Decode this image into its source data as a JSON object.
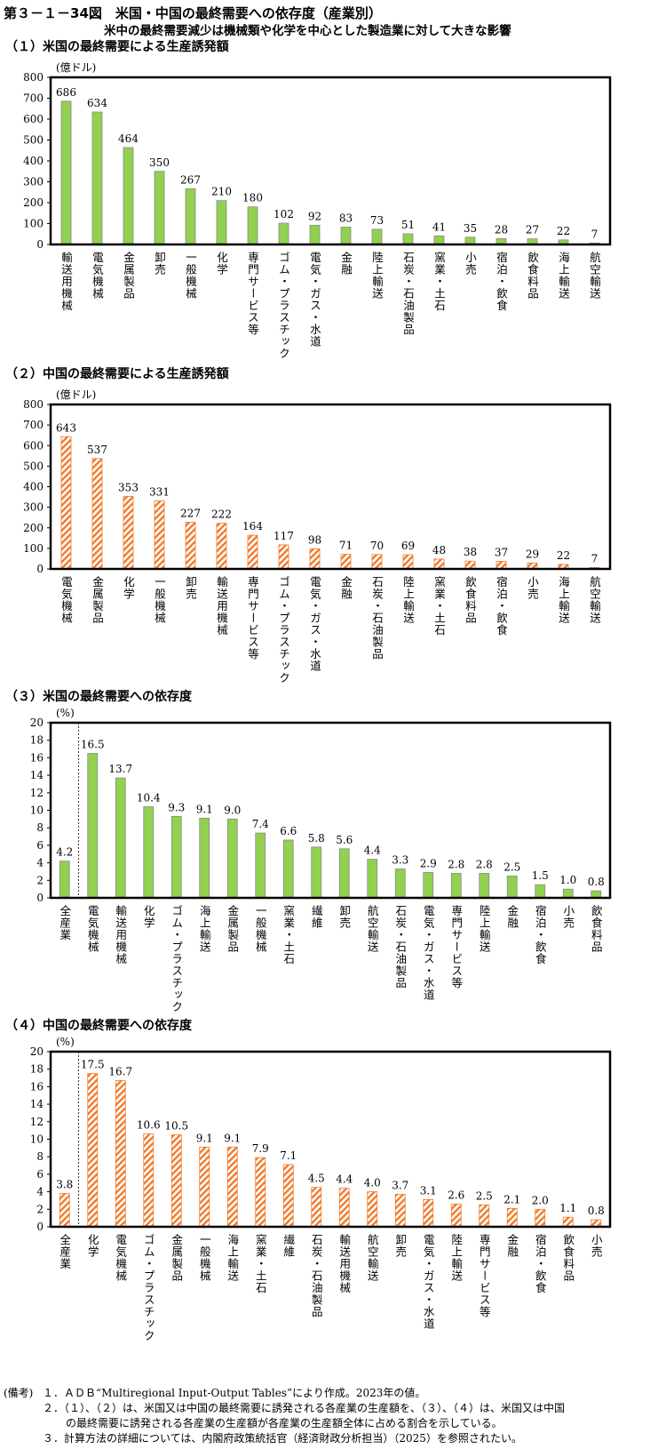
{
  "header": {
    "title": "第３－１－34図　米国・中国の最終需要への依存度（産業別）",
    "subtitle": "米中の最終需要減少は機械類や化学を中心とした製造業に対して大きな影響"
  },
  "colors": {
    "us": "#92D050",
    "cn": "#F07A2A",
    "axis": "#000000"
  },
  "chart_data": [
    {
      "type": "bar",
      "title": "（１）米国の最終需要による生産誘発額",
      "ylabel": "(億ドル)",
      "ylim": [
        0,
        800
      ],
      "yticks": [
        0,
        100,
        200,
        300,
        400,
        500,
        600,
        700,
        800
      ],
      "style": "solid-green",
      "categories": [
        "輸送用機械",
        "電気機械",
        "金属製品",
        "卸売",
        "一般機械",
        "化学",
        "専門サービス等",
        "ゴム・プラスチック",
        "電気・ガス・水道",
        "金融",
        "陸上輸送",
        "石炭・石油製品",
        "窯業・土石",
        "小売",
        "宿泊・飲食",
        "飲食料品",
        "海上輸送",
        "航空輸送"
      ],
      "values": [
        686,
        634,
        464,
        350,
        267,
        210,
        180,
        102,
        92,
        83,
        73,
        51,
        41,
        35,
        28,
        27,
        22,
        7
      ],
      "labels": [
        "686",
        "634",
        "464",
        "350",
        "267",
        "210",
        "180",
        "102",
        "92",
        "83",
        "73",
        "51",
        "41",
        "35",
        "28",
        "27",
        "22",
        "7"
      ]
    },
    {
      "type": "bar",
      "title": "（２）中国の最終需要による生産誘発額",
      "ylabel": "(億ドル)",
      "ylim": [
        0,
        800
      ],
      "yticks": [
        0,
        100,
        200,
        300,
        400,
        500,
        600,
        700,
        800
      ],
      "style": "hatched-orange",
      "categories": [
        "電気機械",
        "金属製品",
        "化学",
        "一般機械",
        "卸売",
        "輸送用機械",
        "専門サービス等",
        "ゴム・プラスチック",
        "電気・ガス・水道",
        "金融",
        "石炭・石油製品",
        "陸上輸送",
        "窯業・土石",
        "飲食料品",
        "宿泊・飲食",
        "小売",
        "海上輸送",
        "航空輸送"
      ],
      "values": [
        643,
        537,
        353,
        331,
        227,
        222,
        164,
        117,
        98,
        71,
        70,
        69,
        48,
        38,
        37,
        29,
        22,
        7
      ],
      "labels": [
        "643",
        "537",
        "353",
        "331",
        "227",
        "222",
        "164",
        "117",
        "98",
        "71",
        "70",
        "69",
        "48",
        "38",
        "37",
        "29",
        "22",
        "7"
      ]
    },
    {
      "type": "bar",
      "title": "（３）米国の最終需要への依存度",
      "ylabel": "(%)",
      "ylim": [
        0,
        20
      ],
      "yticks": [
        0,
        2,
        4,
        6,
        8,
        10,
        12,
        14,
        16,
        18,
        20
      ],
      "style": "solid-green",
      "separator_after_first": true,
      "categories": [
        "全産業",
        "電気機械",
        "輸送用機械",
        "化学",
        "ゴム・プラスチック",
        "海上輸送",
        "金属製品",
        "一般機械",
        "窯業・土石",
        "繊維",
        "卸売",
        "航空輸送",
        "石炭・石油製品",
        "電気・ガス・水道",
        "専門サービス等",
        "陸上輸送",
        "金融",
        "宿泊・飲食",
        "小売",
        "飲食料品"
      ],
      "values": [
        4.2,
        16.5,
        13.7,
        10.4,
        9.3,
        9.1,
        9.0,
        7.4,
        6.6,
        5.8,
        5.6,
        4.4,
        3.3,
        2.9,
        2.8,
        2.8,
        2.5,
        1.5,
        1.0,
        0.8
      ],
      "labels": [
        "4.2",
        "16.5",
        "13.7",
        "10.4",
        "9.3",
        "9.1",
        "9.0",
        "7.4",
        "6.6",
        "5.8",
        "5.6",
        "4.4",
        "3.3",
        "2.9",
        "2.8",
        "2.8",
        "2.5",
        "1.5",
        "1.0",
        "0.8"
      ]
    },
    {
      "type": "bar",
      "title": "（４）中国の最終需要への依存度",
      "ylabel": "(%)",
      "ylim": [
        0,
        20
      ],
      "yticks": [
        0,
        2,
        4,
        6,
        8,
        10,
        12,
        14,
        16,
        18,
        20
      ],
      "style": "hatched-orange",
      "separator_after_first": true,
      "categories": [
        "全産業",
        "化学",
        "電気機械",
        "ゴム・プラスチック",
        "金属製品",
        "一般機械",
        "海上輸送",
        "窯業・土石",
        "繊維",
        "石炭・石油製品",
        "輸送用機械",
        "航空輸送",
        "卸売",
        "電気・ガス・水道",
        "陸上輸送",
        "専門サービス等",
        "金融",
        "宿泊・飲食",
        "飲食料品",
        "小売"
      ],
      "values": [
        3.8,
        17.5,
        16.7,
        10.6,
        10.5,
        9.1,
        9.1,
        7.9,
        7.1,
        4.5,
        4.4,
        4.0,
        3.7,
        3.1,
        2.6,
        2.5,
        2.1,
        2.0,
        1.1,
        0.8
      ],
      "labels": [
        "3.8",
        "17.5",
        "16.7",
        "10.6",
        "10.5",
        "9.1",
        "9.1",
        "7.9",
        "7.1",
        "4.5",
        "4.4",
        "4.0",
        "3.7",
        "3.1",
        "2.6",
        "2.5",
        "2.1",
        "2.0",
        "1.1",
        "0.8"
      ]
    }
  ],
  "notes": {
    "label": "(備考)",
    "items": [
      "１．ＡＤＢ“Multiregional Input-Output Tables”により作成。2023年の値。",
      "２．（１）、（２）は、米国又は中国の最終需要に誘発される各産業の生産額を、（３）、（４）は、米国又は中国",
      "の最終需要に誘発される各産業の生産額が各産業の生産額全体に占める割合を示している。",
      "３．計算方法の詳細については、内閣府政策統括官（経済財政分析担当）（2025）を参照されたい。"
    ]
  }
}
